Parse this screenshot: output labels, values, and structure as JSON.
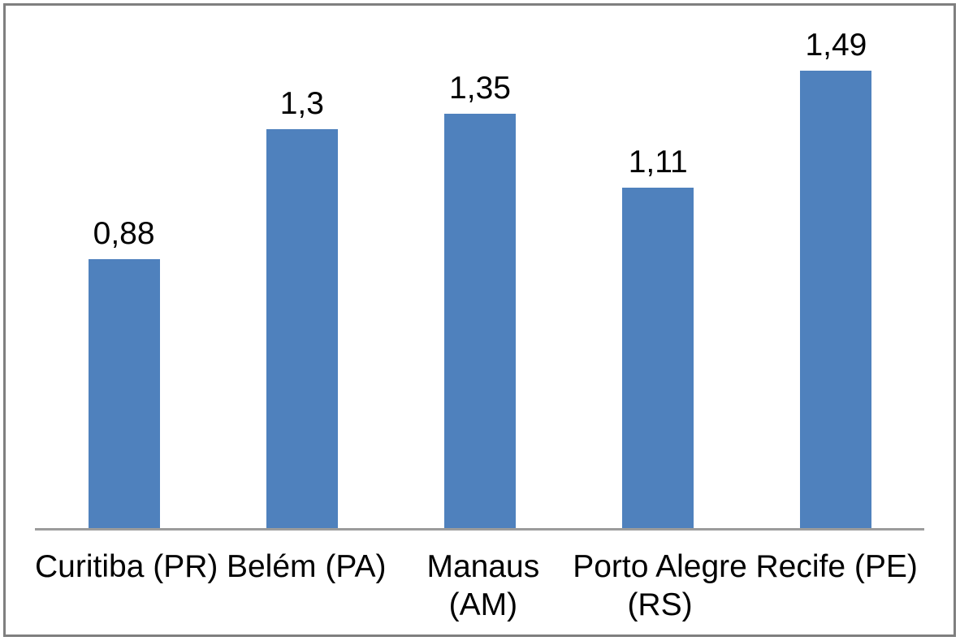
{
  "chart_data": {
    "type": "bar",
    "title": "",
    "xlabel": "",
    "ylabel": "",
    "categories": [
      "Curitiba (PR)",
      "Belém (PA)",
      "Manaus (AM)",
      "Porto Alegre (RS)",
      "Recife (PE)"
    ],
    "values": [
      0.88,
      1.3,
      1.35,
      1.11,
      1.49
    ],
    "value_labels": [
      "0,88",
      "1,3",
      "1,35",
      "1,11",
      "1,49"
    ],
    "category_label_lines": [
      [
        "Curitiba (PR)"
      ],
      [
        "Belém (PA)"
      ],
      [
        "Manaus",
        "(AM)"
      ],
      [
        "Porto Alegre",
        "(RS)"
      ],
      [
        "Recife (PE)"
      ]
    ],
    "ylim": [
      0,
      1.6
    ],
    "grid": false,
    "legend": false,
    "decimal_separator": ",",
    "colors": {
      "bar": "#4f81bd",
      "axis_line": "#9c9c9c",
      "frame_border": "#7f7f7f",
      "label_text": "#000000",
      "background": "#ffffff"
    }
  }
}
